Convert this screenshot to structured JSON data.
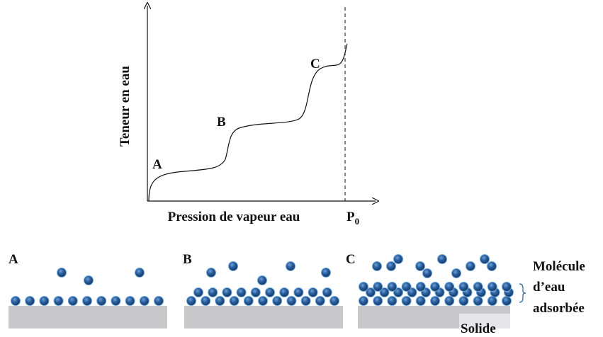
{
  "graph": {
    "y_axis_label": "Teneur en eau",
    "x_axis_label": "Pression de vapeur eau",
    "p0_label": {
      "main": "P",
      "sub": "0"
    },
    "points": [
      "A",
      "B",
      "C"
    ]
  },
  "panels": [
    {
      "label": "A"
    },
    {
      "label": "B"
    },
    {
      "label": "C"
    }
  ],
  "legend": {
    "molecule": [
      "Molécule",
      "d’eau",
      "adsorbée"
    ],
    "solid": "Solide"
  }
}
